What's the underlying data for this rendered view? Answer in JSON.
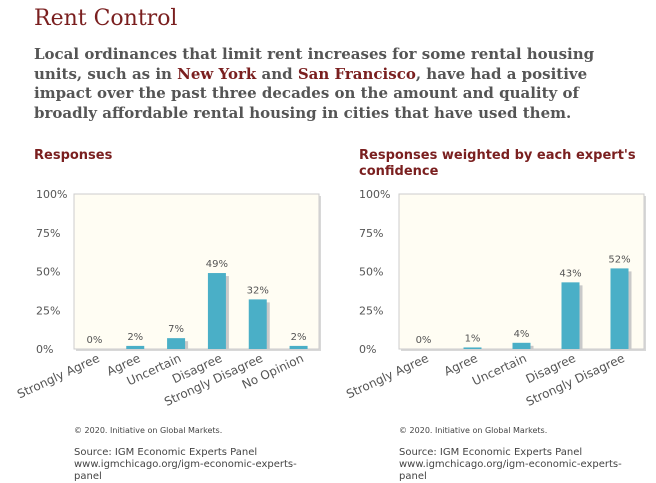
{
  "title": "Rent Control",
  "question": {
    "part1": "Local ordinances that limit rent increases for some rental housing units, such as in ",
    "city1": "New York",
    "part2": " and ",
    "city2": "San Francisco",
    "part3": ", have had a positive impact over the past three decades on the amount and quality of broadly affordable rental housing in cities that have used them."
  },
  "colors": {
    "bar": "#4aafc7",
    "bar_shadow": "#c9c9c9",
    "plot_bg": "#fffdf3",
    "title": "#7a1f1f"
  },
  "footer": {
    "copyright": "© 2020. Initiative on Global Markets.",
    "source": "Source: IGM Economic Experts Panel",
    "url": "www.igmchicago.org/igm-economic-experts-panel"
  },
  "chart_data": [
    {
      "type": "bar",
      "title": "Responses",
      "categories": [
        "Strongly Agree",
        "Agree",
        "Uncertain",
        "Disagree",
        "Strongly Disagree",
        "No Opinion"
      ],
      "values": [
        0,
        2,
        7,
        49,
        32,
        2
      ],
      "data_labels": [
        "0%",
        "2%",
        "7%",
        "49%",
        "32%",
        "2%"
      ],
      "yticks": [
        "0%",
        "25%",
        "50%",
        "75%",
        "100%"
      ],
      "ylim": [
        0,
        100
      ],
      "grid": false
    },
    {
      "type": "bar",
      "title": "Responses weighted by each expert's confidence",
      "categories": [
        "Strongly Agree",
        "Agree",
        "Uncertain",
        "Disagree",
        "Strongly Disagree"
      ],
      "values": [
        0,
        1,
        4,
        43,
        52
      ],
      "data_labels": [
        "0%",
        "1%",
        "4%",
        "43%",
        "52%"
      ],
      "yticks": [
        "0%",
        "25%",
        "50%",
        "75%",
        "100%"
      ],
      "ylim": [
        0,
        100
      ],
      "grid": false
    }
  ]
}
